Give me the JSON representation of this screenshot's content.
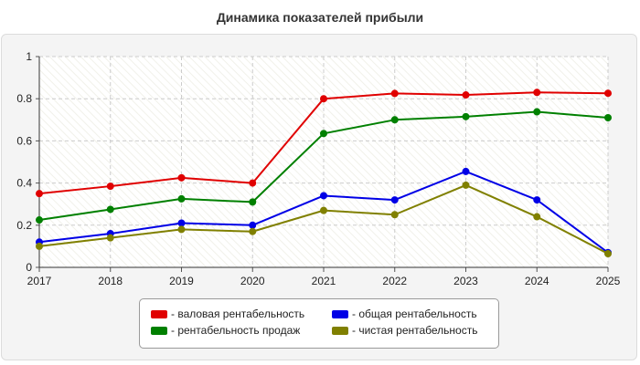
{
  "chart_data": {
    "type": "line",
    "title": "Динамика показателей прибыли",
    "xlabel": "",
    "ylabel": "",
    "x": [
      "2017",
      "2018",
      "2019",
      "2020",
      "2021",
      "2022",
      "2023",
      "2024",
      "2025"
    ],
    "ylim": [
      0,
      1
    ],
    "yticks": [
      "0",
      "0.2",
      "0.4",
      "0.6",
      "0.8",
      "1"
    ],
    "grid": true,
    "legend_position": "bottom",
    "series": [
      {
        "name": "- валовая рентабельность",
        "color": "#e00000",
        "values": [
          0.35,
          0.385,
          0.425,
          0.4,
          0.8,
          0.825,
          0.818,
          0.83,
          0.826
        ]
      },
      {
        "name": "- общая рентабельность",
        "color": "#0000e6",
        "values": [
          0.12,
          0.16,
          0.21,
          0.2,
          0.34,
          0.32,
          0.455,
          0.32,
          0.07
        ]
      },
      {
        "name": "- рентабельность продаж",
        "color": "#008000",
        "values": [
          0.225,
          0.275,
          0.325,
          0.31,
          0.635,
          0.7,
          0.715,
          0.738,
          0.71
        ]
      },
      {
        "name": "- чистая рентабельность",
        "color": "#808000",
        "values": [
          0.1,
          0.14,
          0.18,
          0.17,
          0.27,
          0.25,
          0.39,
          0.24,
          0.065
        ]
      }
    ]
  }
}
